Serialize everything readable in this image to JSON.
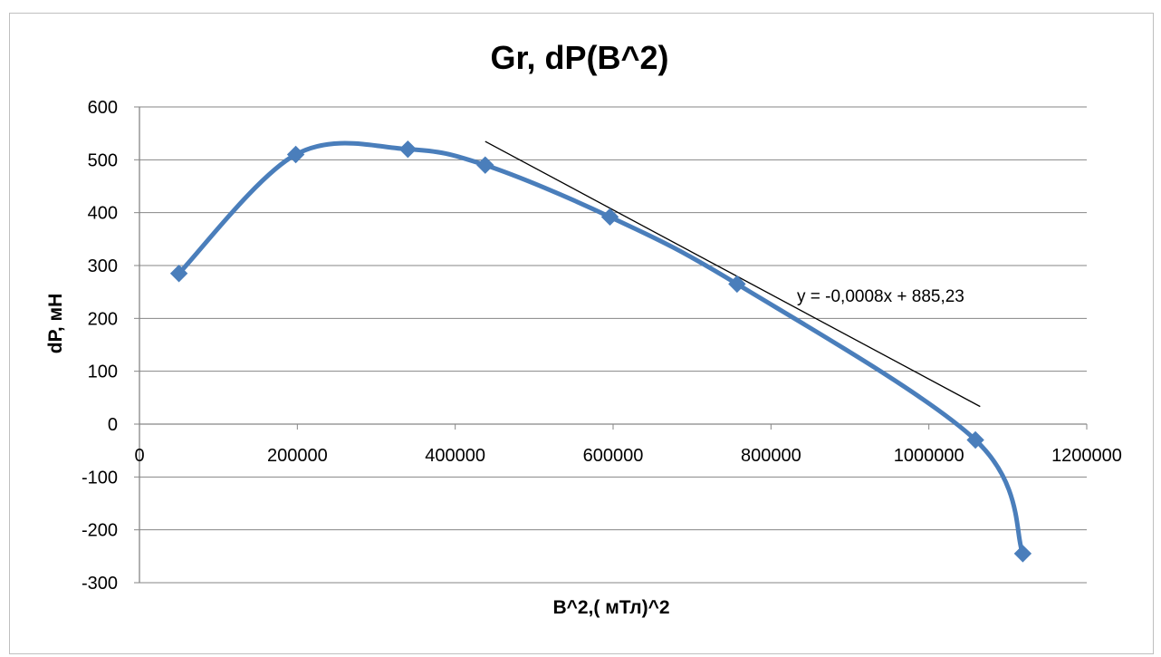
{
  "chart_data": {
    "type": "scatter",
    "title": "Gr, dP(B^2)",
    "xlabel": "B^2,( мТл)^2",
    "ylabel": "dP, мН",
    "xlim": [
      0,
      1200000
    ],
    "ylim": [
      -300,
      600
    ],
    "x_ticks": [
      0,
      200000,
      400000,
      600000,
      800000,
      1000000,
      1200000
    ],
    "x_tick_labels": [
      "0",
      "200000",
      "400000",
      "600000",
      "800000",
      "1000000",
      "1200000"
    ],
    "y_ticks": [
      600,
      500,
      400,
      300,
      200,
      100,
      0,
      -100,
      -200,
      -300
    ],
    "y_tick_labels": [
      "600",
      "500",
      "400",
      "300",
      "200",
      "100",
      "0",
      "-100",
      "-200",
      "-300"
    ],
    "grid": true,
    "series": [
      {
        "name": "dP",
        "style": "smoothed line with diamond markers",
        "color": "#4a7ebb",
        "x": [
          50000,
          198000,
          340000,
          438000,
          596000,
          757000,
          1059000,
          1119000
        ],
        "y": [
          285,
          510,
          520,
          490,
          392,
          265,
          -30,
          -245
        ]
      }
    ],
    "trendline": {
      "type": "linear",
      "color": "#000000",
      "equation": "y = -0,0008x + 885,23",
      "slope": -0.0008,
      "intercept": 885.23,
      "x_range": [
        438000,
        1065000
      ]
    }
  }
}
